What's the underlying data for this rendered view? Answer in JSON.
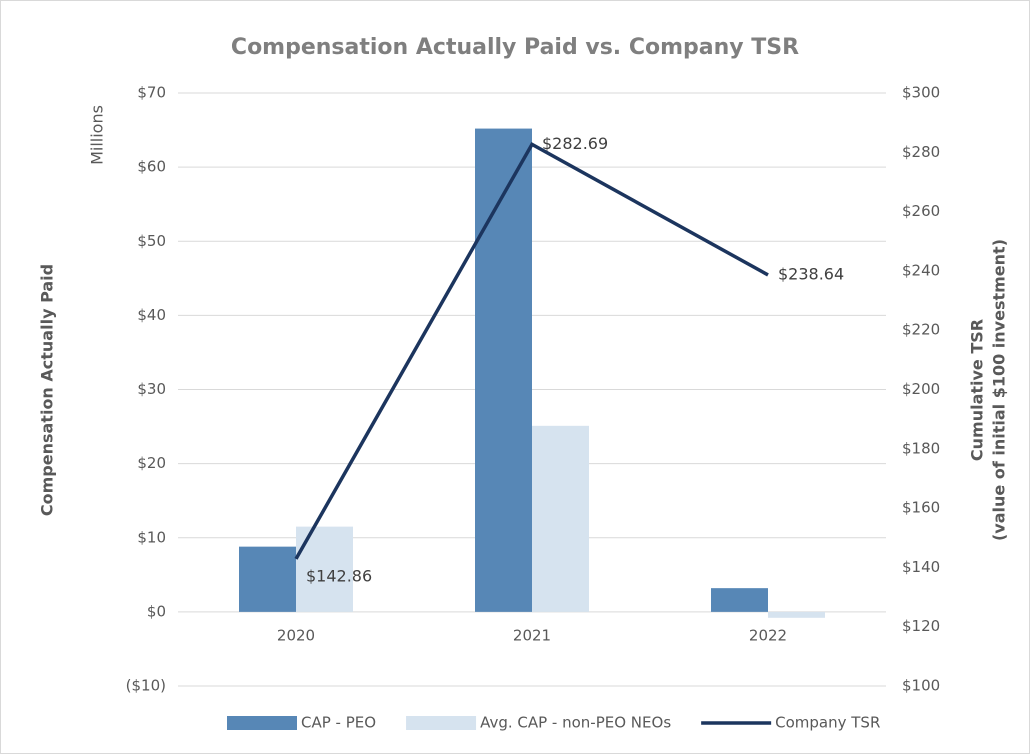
{
  "chart_data": {
    "type": "bar_line",
    "title": "Compensation Actually Paid vs. Company TSR",
    "ylabel": "Compensation Actually Paid",
    "yunit": "Millions",
    "y2label": [
      "Cumulative TSR",
      "(value of initial $100 investment)"
    ],
    "categories": [
      "2020",
      "2021",
      "2022"
    ],
    "series": [
      {
        "name": "CAP - PEO",
        "kind": "bar",
        "color": "#5787b6",
        "values": [
          8.8,
          65.2,
          3.2
        ]
      },
      {
        "name": "Avg. CAP - non-PEO NEOs",
        "kind": "bar",
        "color": "#d6e3ef",
        "values": [
          11.5,
          25.1,
          -0.8
        ]
      },
      {
        "name": "Company TSR",
        "kind": "line",
        "axis": "y2",
        "color": "#1c355e",
        "values": [
          142.86,
          282.69,
          238.64
        ],
        "value_labels": [
          "$142.86",
          "$282.69",
          "$238.64"
        ]
      }
    ],
    "ylim": [
      -10,
      70
    ],
    "yticks": [
      {
        "value": -10,
        "label": "($10)"
      },
      {
        "value": 0,
        "label": "$0"
      },
      {
        "value": 10,
        "label": "$10"
      },
      {
        "value": 20,
        "label": "$20"
      },
      {
        "value": 30,
        "label": "$30"
      },
      {
        "value": 40,
        "label": "$40"
      },
      {
        "value": 50,
        "label": "$50"
      },
      {
        "value": 60,
        "label": "$60"
      },
      {
        "value": 70,
        "label": "$70"
      }
    ],
    "y2lim": [
      100,
      300
    ],
    "y2ticks": [
      {
        "value": 100,
        "label": "$100"
      },
      {
        "value": 120,
        "label": "$120"
      },
      {
        "value": 140,
        "label": "$140"
      },
      {
        "value": 160,
        "label": "$160"
      },
      {
        "value": 180,
        "label": "$180"
      },
      {
        "value": 200,
        "label": "$200"
      },
      {
        "value": 220,
        "label": "$220"
      },
      {
        "value": 240,
        "label": "$240"
      },
      {
        "value": 260,
        "label": "$260"
      },
      {
        "value": 280,
        "label": "$280"
      },
      {
        "value": 300,
        "label": "$300"
      }
    ],
    "grid": true,
    "legend": "bottom"
  }
}
